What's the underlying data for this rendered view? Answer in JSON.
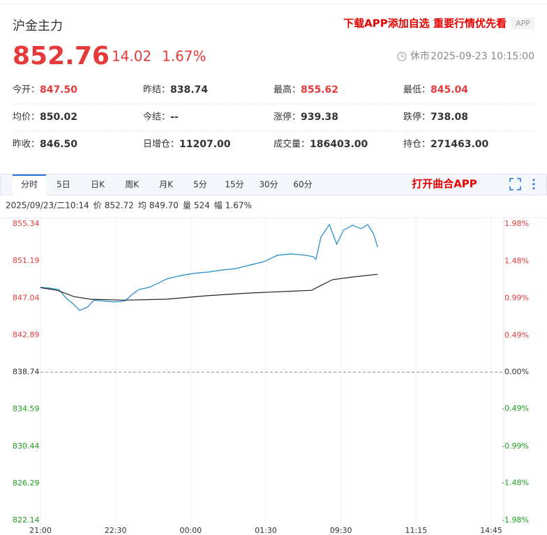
{
  "header": {
    "name": "沪金主力",
    "promo": "下载APP添加自选 重要行情优先看",
    "app_badge": "APP",
    "price": "852.76",
    "change": "14.02",
    "change_pct": "1.67%",
    "status": "休市",
    "datetime": "2025-09-23 10:15:00"
  },
  "stats": [
    [
      {
        "label": "今开：",
        "value": "847.50",
        "color": "#e63a3a"
      },
      {
        "label": "昨结：",
        "value": "838.74"
      },
      {
        "label": "最高：",
        "value": "855.62",
        "color": "#e63a3a"
      },
      {
        "label": "最低：",
        "value": "845.04",
        "color": "#e63a3a"
      }
    ],
    [
      {
        "label": "均价：",
        "value": "850.02"
      },
      {
        "label": "今结：",
        "value": "--"
      },
      {
        "label": "涨停：",
        "value": "939.38"
      },
      {
        "label": "跌停：",
        "value": "738.08"
      }
    ],
    [
      {
        "label": "昨收：",
        "value": "846.50"
      },
      {
        "label": "日增仓：",
        "value": "11207.00"
      },
      {
        "label": "成交量：",
        "value": "186403.00"
      },
      {
        "label": "持仓：",
        "value": "271463.00"
      }
    ]
  ],
  "tabs": [
    "分时",
    "5日",
    "日K",
    "周K",
    "月K",
    "5分",
    "15分",
    "30分",
    "60分"
  ],
  "open_app": "打开曲合APP",
  "info": {
    "time": "2025/09/23/二10:14",
    "items": [
      {
        "label": "价",
        "value": "852.72"
      },
      {
        "label": "均",
        "value": "849.70"
      },
      {
        "label": "量",
        "value": "524"
      },
      {
        "label": "幅",
        "value": "1.67%"
      }
    ]
  },
  "chart_data": {
    "type": "line",
    "xlim": [
      0,
      555
    ],
    "xticks": [
      {
        "value": 0,
        "label": "21:00"
      },
      {
        "value": 90,
        "label": "22:30"
      },
      {
        "value": 180,
        "label": "00:00"
      },
      {
        "value": 270,
        "label": "01:30"
      },
      {
        "value": 360,
        "label": "09:30"
      },
      {
        "value": 450,
        "label": "11:15"
      },
      {
        "value": 540,
        "label": "14:45"
      }
    ],
    "ylim": [
      822.14,
      855.34
    ],
    "yticks": [
      855.34,
      851.19,
      847.04,
      842.89,
      838.74,
      834.59,
      830.44,
      826.29,
      822.14
    ],
    "y2lim": [
      -1.98,
      1.98
    ],
    "y2ticks": [
      {
        "value": 1.98,
        "label": "1.98%"
      },
      {
        "value": 1.48,
        "label": "1.48%"
      },
      {
        "value": 0.99,
        "label": "0.99%"
      },
      {
        "value": 0.49,
        "label": "0.49%"
      },
      {
        "value": 0,
        "label": "0.00%"
      },
      {
        "value": -0.49,
        "label": "-0.49%"
      },
      {
        "value": -0.99,
        "label": "-0.99%"
      },
      {
        "value": -1.48,
        "label": "-1.48%"
      },
      {
        "value": -1.98,
        "label": "-1.98%"
      }
    ],
    "up_color": "#e63a3a",
    "down_color": "#1fa01f",
    "flat_color": "#333333",
    "series": [
      {
        "color": "#1e88c8",
        "x": [
          0,
          10,
          22,
          31,
          39,
          47,
          56,
          64,
          76,
          89,
          101,
          110,
          118,
          130,
          143,
          151,
          168,
          184,
          201,
          218,
          234,
          251,
          268,
          284,
          301,
          317,
          327,
          330,
          336,
          346,
          355,
          363,
          374,
          384,
          392,
          399,
          404
        ],
        "values": [
          848.23,
          848.15,
          848.0,
          847.0,
          846.4,
          845.65,
          846.0,
          846.8,
          846.7,
          846.6,
          846.7,
          847.45,
          848.0,
          848.23,
          848.78,
          849.17,
          849.56,
          849.8,
          849.95,
          850.18,
          850.34,
          850.73,
          851.12,
          851.83,
          851.98,
          851.83,
          851.67,
          851.36,
          853.86,
          855.26,
          853.07,
          854.64,
          855.2,
          854.79,
          855.26,
          854.25,
          852.72
        ]
      },
      {
        "color": "#222222",
        "x": [
          0,
          20,
          40,
          60,
          100,
          150,
          200,
          250,
          300,
          325,
          335,
          350,
          375,
          404
        ],
        "values": [
          848.2,
          847.9,
          847.2,
          846.9,
          846.8,
          846.9,
          847.3,
          847.6,
          847.8,
          847.9,
          848.4,
          849.1,
          849.4,
          849.7
        ]
      }
    ]
  }
}
